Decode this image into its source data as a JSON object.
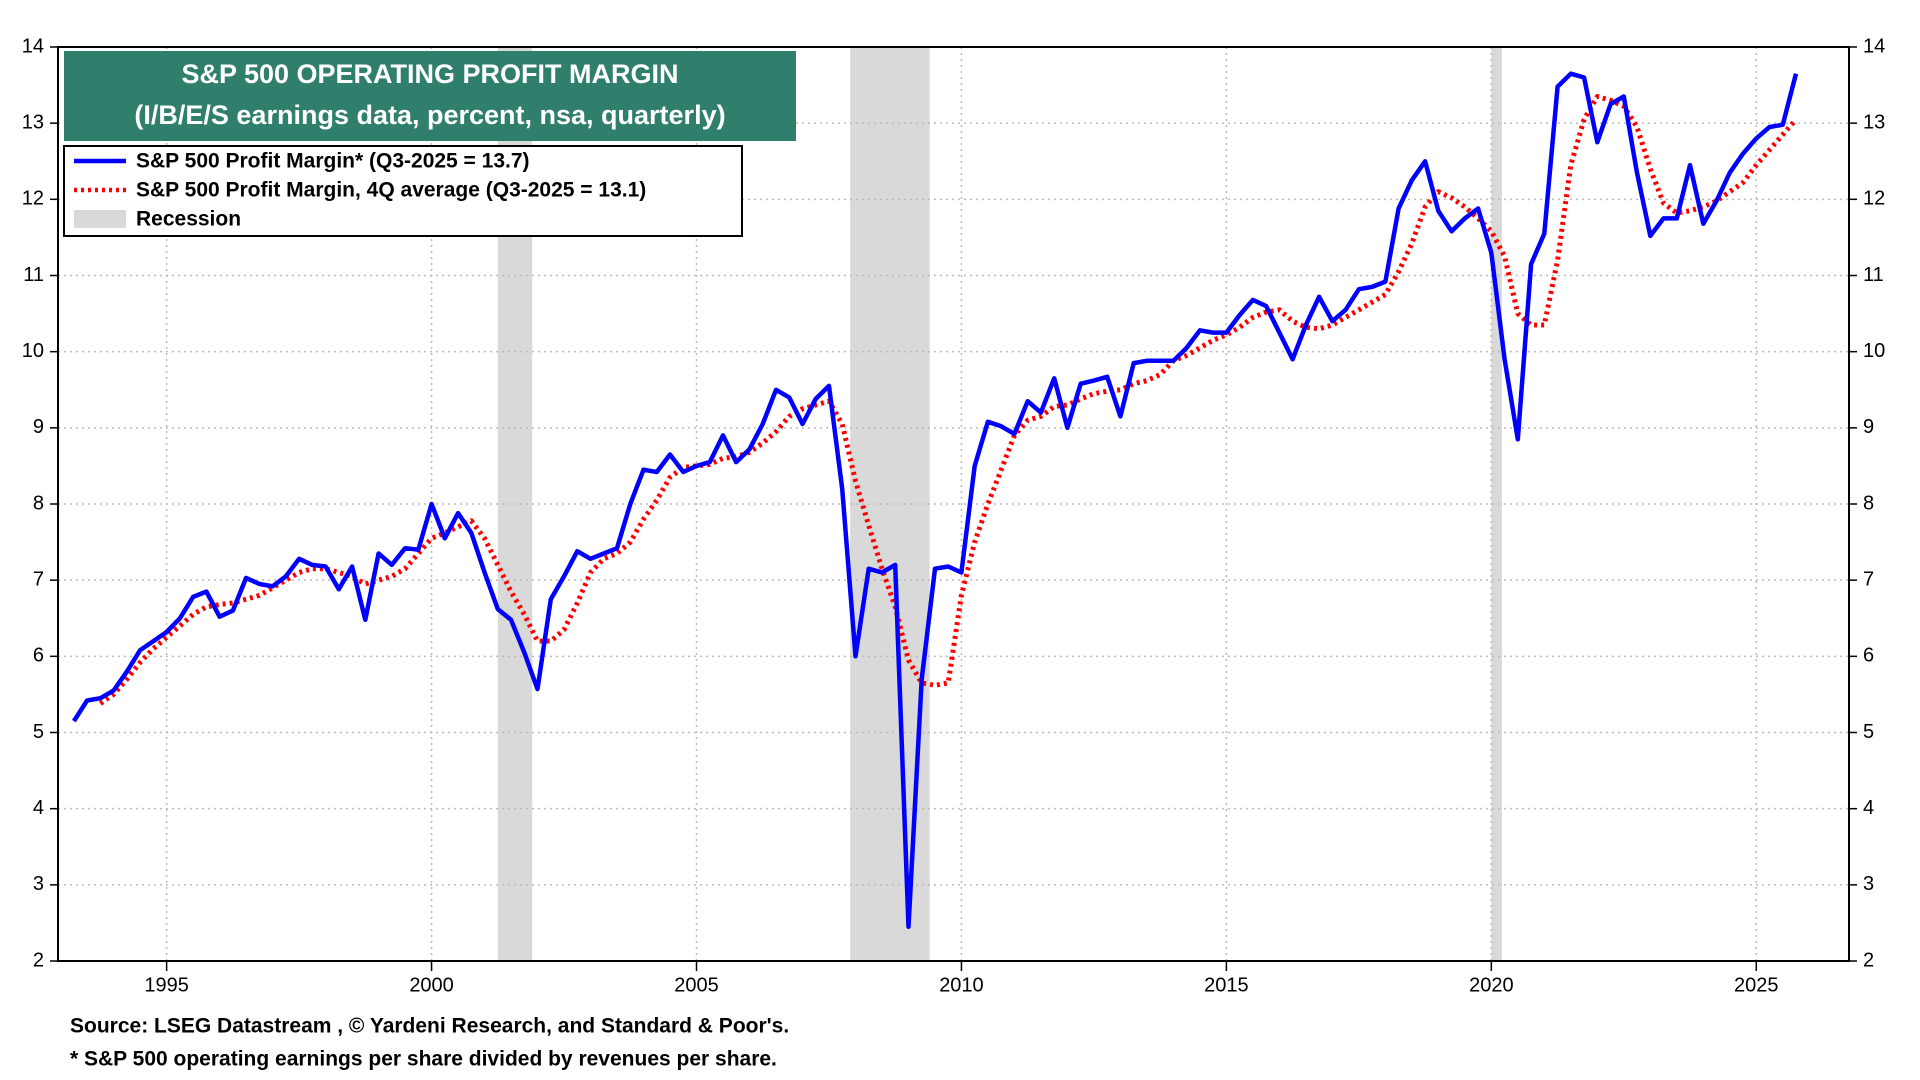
{
  "chart_data": {
    "type": "line",
    "title": "S&P 500 OPERATING PROFIT MARGIN",
    "subtitle": "(I/B/E/S earnings data, percent, nsa, quarterly)",
    "source": "Source: LSEG Datastream , © Yardeni Research, and Standard & Poor's.",
    "footnote": "* S&P 500 operating earnings per share divided by revenues per share.",
    "x": [
      1993.25,
      1993.5,
      1993.75,
      1994,
      1994.25,
      1994.5,
      1994.75,
      1995,
      1995.25,
      1995.5,
      1995.75,
      1996,
      1996.25,
      1996.5,
      1996.75,
      1997,
      1997.25,
      1997.5,
      1997.75,
      1998,
      1998.25,
      1998.5,
      1998.75,
      1999,
      1999.25,
      1999.5,
      1999.75,
      2000,
      2000.25,
      2000.5,
      2000.75,
      2001,
      2001.25,
      2001.5,
      2001.75,
      2002,
      2002.25,
      2002.5,
      2002.75,
      2003,
      2003.25,
      2003.5,
      2003.75,
      2004,
      2004.25,
      2004.5,
      2004.75,
      2005,
      2005.25,
      2005.5,
      2005.75,
      2006,
      2006.25,
      2006.5,
      2006.75,
      2007,
      2007.25,
      2007.5,
      2007.75,
      2008,
      2008.25,
      2008.5,
      2008.75,
      2009,
      2009.25,
      2009.5,
      2009.75,
      2010,
      2010.25,
      2010.5,
      2010.75,
      2011,
      2011.25,
      2011.5,
      2011.75,
      2012,
      2012.25,
      2012.5,
      2012.75,
      2013,
      2013.25,
      2013.5,
      2013.75,
      2014,
      2014.25,
      2014.5,
      2014.75,
      2015,
      2015.25,
      2015.5,
      2015.75,
      2016,
      2016.25,
      2016.5,
      2016.75,
      2017,
      2017.25,
      2017.5,
      2017.75,
      2018,
      2018.25,
      2018.5,
      2018.75,
      2019,
      2019.25,
      2019.5,
      2019.75,
      2020,
      2020.25,
      2020.5,
      2020.75,
      2021,
      2021.25,
      2021.5,
      2021.75,
      2022,
      2022.25,
      2022.5,
      2022.75,
      2023,
      2023.25,
      2023.5,
      2023.75,
      2024,
      2024.25,
      2024.5,
      2024.75,
      2025,
      2025.25,
      2025.5,
      2025.75
    ],
    "series": [
      {
        "name": "S&P 500 Profit Margin* (Q3-2025 = 13.7)",
        "color": "#0000ff",
        "dash": false,
        "values": [
          5.15,
          5.42,
          5.45,
          5.55,
          5.8,
          6.08,
          6.2,
          6.32,
          6.5,
          6.78,
          6.85,
          6.52,
          6.6,
          7.03,
          6.95,
          6.92,
          7.05,
          7.28,
          7.2,
          7.18,
          6.88,
          7.18,
          6.48,
          7.35,
          7.2,
          7.42,
          7.4,
          8.0,
          7.55,
          7.88,
          7.62,
          7.1,
          6.62,
          6.48,
          6.05,
          5.57,
          6.75,
          7.05,
          7.38,
          7.28,
          7.35,
          7.42,
          8.0,
          8.45,
          8.42,
          8.65,
          8.42,
          8.5,
          8.55,
          8.9,
          8.55,
          8.72,
          9.05,
          9.5,
          9.4,
          9.05,
          9.38,
          9.55,
          8.2,
          6.0,
          7.15,
          7.1,
          7.2,
          2.45,
          5.7,
          7.15,
          7.18,
          7.1,
          8.5,
          9.08,
          9.02,
          8.92,
          9.35,
          9.2,
          9.65,
          9.0,
          9.58,
          9.62,
          9.67,
          9.15,
          9.85,
          9.88,
          9.88,
          9.88,
          10.05,
          10.28,
          10.25,
          10.25,
          10.48,
          10.68,
          10.6,
          10.25,
          9.9,
          10.35,
          10.72,
          10.4,
          10.55,
          10.82,
          10.85,
          10.92,
          11.88,
          12.25,
          12.5,
          11.85,
          11.58,
          11.75,
          11.88,
          11.3,
          9.9,
          8.85,
          11.15,
          11.55,
          13.48,
          13.65,
          13.6,
          12.75,
          13.25,
          13.35,
          12.35,
          11.52,
          11.75,
          11.75,
          12.45,
          11.68,
          11.98,
          12.35,
          12.6,
          12.8,
          12.95,
          12.98,
          13.65
        ]
      },
      {
        "name": "S&P 500 Profit Margin, 4Q average (Q3-2025 = 13.1)",
        "color": "#ff0000",
        "dash": true,
        "values": [
          null,
          null,
          5.38,
          5.5,
          5.7,
          5.92,
          6.1,
          6.25,
          6.4,
          6.55,
          6.65,
          6.68,
          6.7,
          6.75,
          6.8,
          6.9,
          7.0,
          7.1,
          7.15,
          7.15,
          7.1,
          7.05,
          6.95,
          7.0,
          7.05,
          7.15,
          7.35,
          7.55,
          7.62,
          7.7,
          7.78,
          7.55,
          7.2,
          6.85,
          6.55,
          6.2,
          6.2,
          6.35,
          6.7,
          7.1,
          7.28,
          7.35,
          7.5,
          7.8,
          8.05,
          8.35,
          8.48,
          8.5,
          8.52,
          8.6,
          8.62,
          8.68,
          8.8,
          8.95,
          9.15,
          9.25,
          9.3,
          9.35,
          9.05,
          8.3,
          7.72,
          7.15,
          6.65,
          5.95,
          5.65,
          5.62,
          5.65,
          6.8,
          7.5,
          8.0,
          8.45,
          8.9,
          9.1,
          9.15,
          9.28,
          9.3,
          9.38,
          9.45,
          9.48,
          9.5,
          9.58,
          9.62,
          9.7,
          9.88,
          9.95,
          10.05,
          10.15,
          10.22,
          10.32,
          10.45,
          10.52,
          10.55,
          10.4,
          10.32,
          10.3,
          10.35,
          10.45,
          10.55,
          10.65,
          10.75,
          11.05,
          11.42,
          11.9,
          12.1,
          12.02,
          11.9,
          11.75,
          11.58,
          11.25,
          10.5,
          10.35,
          10.35,
          11.2,
          12.45,
          13.05,
          13.35,
          13.3,
          13.22,
          12.95,
          12.4,
          11.95,
          11.82,
          11.85,
          11.9,
          11.98,
          12.1,
          12.22,
          12.45,
          12.65,
          12.85,
          13.05
        ]
      }
    ],
    "recessions": {
      "name": "Recession",
      "color": "#d9d9d9",
      "ranges": [
        [
          2001.25,
          2001.9
        ],
        [
          2007.9,
          2009.4
        ],
        [
          2020.0,
          2020.2
        ]
      ]
    },
    "xlim": [
      1992.95,
      2026.75
    ],
    "xticks": [
      1995,
      2000,
      2005,
      2010,
      2015,
      2020,
      2025
    ],
    "ylim": [
      2,
      14
    ],
    "yticks": [
      2,
      3,
      4,
      5,
      6,
      7,
      8,
      9,
      10,
      11,
      12,
      13,
      14
    ],
    "y2lim": [
      2,
      14
    ],
    "y2ticks": [
      2,
      3,
      4,
      5,
      6,
      7,
      8,
      9,
      10,
      11,
      12,
      13,
      14
    ],
    "grid": true,
    "legend": "upper left",
    "title_color": "#2f7f6c"
  }
}
